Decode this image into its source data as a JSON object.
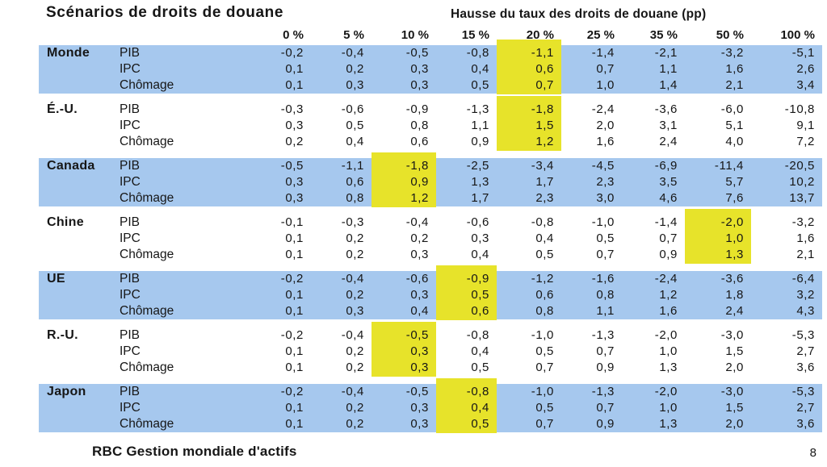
{
  "title": "Scénarios de droits de douane",
  "header": {
    "group_label": "Hausse du taux des droits de douane (pp)",
    "columns": [
      "0 %",
      "5 %",
      "10 %",
      "15 %",
      "20 %",
      "25 %",
      "35 %",
      "50 %",
      "100 %"
    ]
  },
  "groups": [
    {
      "region": "Monde",
      "shaded": true,
      "highlight_col": 4,
      "rows": [
        {
          "metric": "PIB",
          "values": [
            "-0,2",
            "-0,4",
            "-0,5",
            "-0,8",
            "-1,1",
            "-1,4",
            "-2,1",
            "-3,2",
            "-5,1"
          ]
        },
        {
          "metric": "IPC",
          "values": [
            "0,1",
            "0,2",
            "0,3",
            "0,4",
            "0,6",
            "0,7",
            "1,1",
            "1,6",
            "2,6"
          ]
        },
        {
          "metric": "Chômage",
          "values": [
            "0,1",
            "0,3",
            "0,3",
            "0,5",
            "0,7",
            "1,0",
            "1,4",
            "2,1",
            "3,4"
          ]
        }
      ]
    },
    {
      "region": "É.-U.",
      "shaded": false,
      "highlight_col": 4,
      "rows": [
        {
          "metric": "PIB",
          "values": [
            "-0,3",
            "-0,6",
            "-0,9",
            "-1,3",
            "-1,8",
            "-2,4",
            "-3,6",
            "-6,0",
            "-10,8"
          ]
        },
        {
          "metric": "IPC",
          "values": [
            "0,3",
            "0,5",
            "0,8",
            "1,1",
            "1,5",
            "2,0",
            "3,1",
            "5,1",
            "9,1"
          ]
        },
        {
          "metric": "Chômage",
          "values": [
            "0,2",
            "0,4",
            "0,6",
            "0,9",
            "1,2",
            "1,6",
            "2,4",
            "4,0",
            "7,2"
          ]
        }
      ]
    },
    {
      "region": "Canada",
      "shaded": true,
      "highlight_col": 2,
      "rows": [
        {
          "metric": "PIB",
          "values": [
            "-0,5",
            "-1,1",
            "-1,8",
            "-2,5",
            "-3,4",
            "-4,5",
            "-6,9",
            "-11,4",
            "-20,5"
          ]
        },
        {
          "metric": "IPC",
          "values": [
            "0,3",
            "0,6",
            "0,9",
            "1,3",
            "1,7",
            "2,3",
            "3,5",
            "5,7",
            "10,2"
          ]
        },
        {
          "metric": "Chômage",
          "values": [
            "0,3",
            "0,8",
            "1,2",
            "1,7",
            "2,3",
            "3,0",
            "4,6",
            "7,6",
            "13,7"
          ]
        }
      ]
    },
    {
      "region": "Chine",
      "shaded": false,
      "highlight_col": 7,
      "rows": [
        {
          "metric": "PIB",
          "values": [
            "-0,1",
            "-0,3",
            "-0,4",
            "-0,6",
            "-0,8",
            "-1,0",
            "-1,4",
            "-2,0",
            "-3,2"
          ]
        },
        {
          "metric": "IPC",
          "values": [
            "0,1",
            "0,2",
            "0,2",
            "0,3",
            "0,4",
            "0,5",
            "0,7",
            "1,0",
            "1,6"
          ]
        },
        {
          "metric": "Chômage",
          "values": [
            "0,1",
            "0,2",
            "0,3",
            "0,4",
            "0,5",
            "0,7",
            "0,9",
            "1,3",
            "2,1"
          ]
        }
      ]
    },
    {
      "region": "UE",
      "shaded": true,
      "highlight_col": 3,
      "rows": [
        {
          "metric": "PIB",
          "values": [
            "-0,2",
            "-0,4",
            "-0,6",
            "-0,9",
            "-1,2",
            "-1,6",
            "-2,4",
            "-3,6",
            "-6,4"
          ]
        },
        {
          "metric": "IPC",
          "values": [
            "0,1",
            "0,2",
            "0,3",
            "0,5",
            "0,6",
            "0,8",
            "1,2",
            "1,8",
            "3,2"
          ]
        },
        {
          "metric": "Chômage",
          "values": [
            "0,1",
            "0,3",
            "0,4",
            "0,6",
            "0,8",
            "1,1",
            "1,6",
            "2,4",
            "4,3"
          ]
        }
      ]
    },
    {
      "region": "R.-U.",
      "shaded": false,
      "highlight_col": 2,
      "rows": [
        {
          "metric": "PIB",
          "values": [
            "-0,2",
            "-0,4",
            "-0,5",
            "-0,8",
            "-1,0",
            "-1,3",
            "-2,0",
            "-3,0",
            "-5,3"
          ]
        },
        {
          "metric": "IPC",
          "values": [
            "0,1",
            "0,2",
            "0,3",
            "0,4",
            "0,5",
            "0,7",
            "1,0",
            "1,5",
            "2,7"
          ]
        },
        {
          "metric": "Chômage",
          "values": [
            "0,1",
            "0,2",
            "0,3",
            "0,5",
            "0,7",
            "0,9",
            "1,3",
            "2,0",
            "3,6"
          ]
        }
      ]
    },
    {
      "region": "Japon",
      "shaded": true,
      "highlight_col": 3,
      "rows": [
        {
          "metric": "PIB",
          "values": [
            "-0,2",
            "-0,4",
            "-0,5",
            "-0,8",
            "-1,0",
            "-1,3",
            "-2,0",
            "-3,0",
            "-5,3"
          ]
        },
        {
          "metric": "IPC",
          "values": [
            "0,1",
            "0,2",
            "0,3",
            "0,4",
            "0,5",
            "0,7",
            "1,0",
            "1,5",
            "2,7"
          ]
        },
        {
          "metric": "Chômage",
          "values": [
            "0,1",
            "0,2",
            "0,3",
            "0,5",
            "0,7",
            "0,9",
            "1,3",
            "2,0",
            "3,6"
          ]
        }
      ]
    }
  ],
  "footer": {
    "brand": "RBC Gestion mondiale d'actifs",
    "page_number": "8"
  },
  "colors": {
    "band_blue": "#a6c8ee",
    "highlight_yellow": "#e7e32a"
  }
}
